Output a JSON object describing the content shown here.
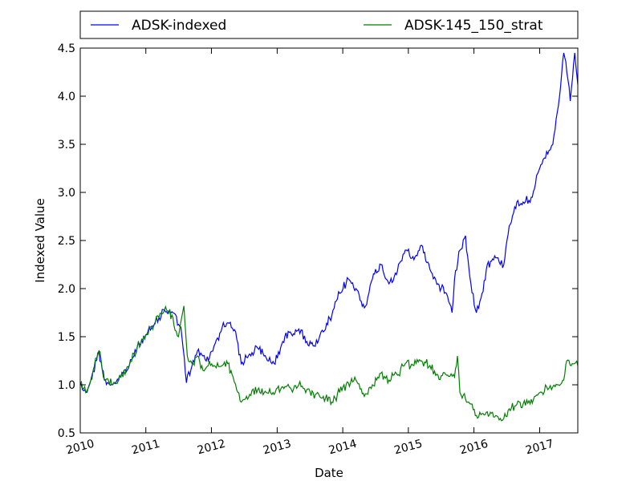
{
  "chart_data": {
    "type": "line",
    "xlabel": "Date",
    "ylabel": "Indexed Value",
    "xlim": [
      "2010-01-01",
      "2017-08-01"
    ],
    "ylim": [
      0.5,
      4.5
    ],
    "x_ticks": [
      "2010",
      "2011",
      "2012",
      "2013",
      "2014",
      "2015",
      "2016",
      "2017"
    ],
    "y_ticks": [
      "0.5",
      "1.0",
      "1.5",
      "2.0",
      "2.5",
      "3.0",
      "3.5",
      "4.0",
      "4.5"
    ],
    "grid": false,
    "legend_placement": "top, above plot",
    "series": [
      {
        "name": "ADSK-indexed",
        "color": "#0000ff",
        "x": [
          "2010-01-01",
          "2010-02-01",
          "2010-03-01",
          "2010-04-15",
          "2010-05-15",
          "2010-07-01",
          "2010-08-15",
          "2010-10-01",
          "2010-11-15",
          "2011-01-01",
          "2011-02-15",
          "2011-03-15",
          "2011-04-15",
          "2011-06-01",
          "2011-07-15",
          "2011-08-15",
          "2011-09-15",
          "2011-10-15",
          "2011-11-15",
          "2011-12-15",
          "2012-01-15",
          "2012-03-01",
          "2012-04-15",
          "2012-05-15",
          "2012-06-15",
          "2012-08-01",
          "2012-09-15",
          "2012-11-01",
          "2012-12-15",
          "2013-02-01",
          "2013-03-15",
          "2013-05-01",
          "2013-06-15",
          "2013-08-01",
          "2013-09-15",
          "2013-11-01",
          "2013-12-15",
          "2014-02-01",
          "2014-03-15",
          "2014-05-01",
          "2014-06-15",
          "2014-08-01",
          "2014-09-15",
          "2014-11-01",
          "2014-12-15",
          "2015-02-01",
          "2015-03-15",
          "2015-05-01",
          "2015-06-15",
          "2015-08-01",
          "2015-09-01",
          "2015-09-15",
          "2015-10-15",
          "2015-11-15",
          "2015-12-15",
          "2016-01-15",
          "2016-02-15",
          "2016-03-15",
          "2016-05-01",
          "2016-06-15",
          "2016-07-15",
          "2016-08-15",
          "2016-10-01",
          "2016-11-15",
          "2017-01-01",
          "2017-02-15",
          "2017-03-15",
          "2017-04-15",
          "2017-05-15",
          "2017-06-01",
          "2017-06-20",
          "2017-07-15",
          "2017-08-01"
        ],
        "y": [
          1.02,
          0.92,
          1.05,
          1.35,
          1.05,
          1.0,
          1.08,
          1.2,
          1.4,
          1.52,
          1.62,
          1.7,
          1.78,
          1.75,
          1.6,
          1.02,
          1.2,
          1.35,
          1.3,
          1.25,
          1.4,
          1.6,
          1.65,
          1.55,
          1.22,
          1.32,
          1.38,
          1.28,
          1.22,
          1.45,
          1.55,
          1.58,
          1.45,
          1.4,
          1.55,
          1.72,
          1.95,
          2.1,
          2.0,
          1.8,
          2.1,
          2.25,
          2.05,
          2.18,
          2.4,
          2.3,
          2.45,
          2.2,
          2.05,
          1.95,
          1.75,
          2.1,
          2.4,
          2.55,
          2.05,
          1.75,
          1.95,
          2.25,
          2.32,
          2.25,
          2.65,
          2.85,
          2.9,
          2.95,
          3.25,
          3.4,
          3.5,
          3.9,
          4.45,
          4.25,
          3.95,
          4.45,
          4.12
        ]
      },
      {
        "name": "ADSK-145_150_strat",
        "color": "#008000",
        "x": [
          "2010-01-01",
          "2010-02-01",
          "2010-03-01",
          "2010-04-15",
          "2010-05-15",
          "2010-07-01",
          "2010-08-15",
          "2010-10-01",
          "2010-11-15",
          "2011-01-01",
          "2011-02-15",
          "2011-03-15",
          "2011-04-15",
          "2011-06-01",
          "2011-07-01",
          "2011-08-01",
          "2011-08-20",
          "2011-09-15",
          "2011-10-15",
          "2011-11-15",
          "2011-12-15",
          "2012-01-15",
          "2012-03-01",
          "2012-04-01",
          "2012-05-01",
          "2012-06-15",
          "2012-08-01",
          "2012-09-15",
          "2012-11-01",
          "2012-12-15",
          "2013-02-01",
          "2013-03-15",
          "2013-05-01",
          "2013-06-15",
          "2013-08-01",
          "2013-09-15",
          "2013-11-01",
          "2013-12-15",
          "2014-02-01",
          "2014-03-15",
          "2014-05-01",
          "2014-06-15",
          "2014-08-01",
          "2014-09-15",
          "2014-11-01",
          "2014-12-15",
          "2015-02-01",
          "2015-03-15",
          "2015-05-01",
          "2015-06-15",
          "2015-08-01",
          "2015-09-15",
          "2015-10-01",
          "2015-10-15",
          "2015-11-15",
          "2015-12-15",
          "2016-01-15",
          "2016-02-15",
          "2016-03-15",
          "2016-05-01",
          "2016-06-15",
          "2016-07-15",
          "2016-08-15",
          "2016-10-01",
          "2016-11-15",
          "2017-01-01",
          "2017-02-15",
          "2017-03-15",
          "2017-04-15",
          "2017-05-15",
          "2017-06-01",
          "2017-07-01",
          "2017-08-01"
        ],
        "y": [
          1.02,
          0.92,
          1.05,
          1.35,
          1.05,
          1.0,
          1.08,
          1.2,
          1.4,
          1.52,
          1.62,
          1.7,
          1.78,
          1.7,
          1.5,
          1.82,
          1.3,
          1.22,
          1.3,
          1.15,
          1.2,
          1.2,
          1.2,
          1.22,
          1.08,
          0.82,
          0.9,
          0.95,
          0.92,
          0.9,
          0.98,
          0.97,
          1.0,
          0.95,
          0.9,
          0.88,
          0.82,
          0.92,
          1.02,
          1.05,
          0.88,
          1.0,
          1.12,
          1.05,
          1.1,
          1.22,
          1.2,
          1.25,
          1.2,
          1.1,
          1.1,
          1.08,
          1.3,
          0.92,
          0.85,
          0.8,
          0.68,
          0.7,
          0.72,
          0.68,
          0.65,
          0.75,
          0.78,
          0.8,
          0.85,
          0.92,
          0.95,
          0.98,
          1.0,
          1.05,
          1.25,
          1.22,
          1.2
        ]
      }
    ]
  }
}
